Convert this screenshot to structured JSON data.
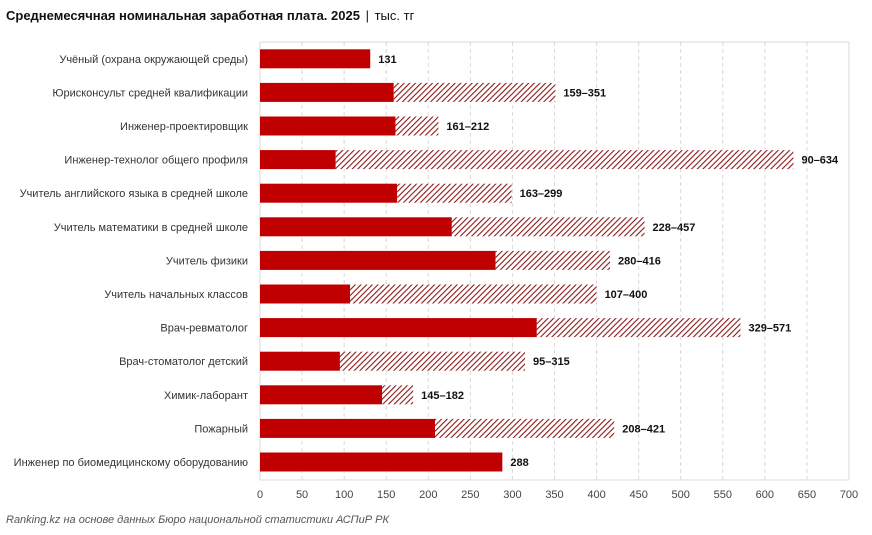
{
  "title": "Среднемесячная номинальная заработная плата. 2025",
  "title_sep": "|",
  "unit": "тыс. тг",
  "footer": "Ranking.kz на основе данных Бюро национальной статистики АСПиР РК",
  "colors": {
    "bar": "#c00000",
    "hatch": "#8b1a1a",
    "grid": "#d9d9d9"
  },
  "chart_data": {
    "type": "bar",
    "orientation": "horizontal",
    "stacked": "range (solid = minimum, hatched = span to maximum)",
    "xlim": [
      0,
      700
    ],
    "xticks": [
      "0",
      "50",
      "100",
      "150",
      "200",
      "250",
      "300",
      "350",
      "400",
      "450",
      "500",
      "550",
      "600",
      "650",
      "700"
    ],
    "grid": true,
    "categories": [
      {
        "label": "Учёный (охрана окружающей среды)",
        "min": 131,
        "max": 131,
        "value_label": "131"
      },
      {
        "label": "Юрисконсульт средней квалификации",
        "min": 159,
        "max": 351,
        "value_label": "159–351"
      },
      {
        "label": "Инженер-проектировщик",
        "min": 161,
        "max": 212,
        "value_label": "161–212"
      },
      {
        "label": "Инженер-технолог общего профиля",
        "min": 90,
        "max": 634,
        "value_label": "90–634"
      },
      {
        "label": "Учитель английского языка в средней школе",
        "min": 163,
        "max": 299,
        "value_label": "163–299"
      },
      {
        "label": "Учитель математики в средней школе",
        "min": 228,
        "max": 457,
        "value_label": "228–457"
      },
      {
        "label": "Учитель физики",
        "min": 280,
        "max": 416,
        "value_label": "280–416"
      },
      {
        "label": "Учитель начальных классов",
        "min": 107,
        "max": 400,
        "value_label": "107–400"
      },
      {
        "label": "Врач-ревматолог",
        "min": 329,
        "max": 571,
        "value_label": "329–571"
      },
      {
        "label": "Врач-стоматолог детский",
        "min": 95,
        "max": 315,
        "value_label": "95–315"
      },
      {
        "label": "Химик-лаборант",
        "min": 145,
        "max": 182,
        "value_label": "145–182"
      },
      {
        "label": "Пожарный",
        "min": 208,
        "max": 421,
        "value_label": "208–421"
      },
      {
        "label": "Инженер по биомедицинскому оборудованию",
        "min": 288,
        "max": 288,
        "value_label": "288"
      }
    ]
  }
}
